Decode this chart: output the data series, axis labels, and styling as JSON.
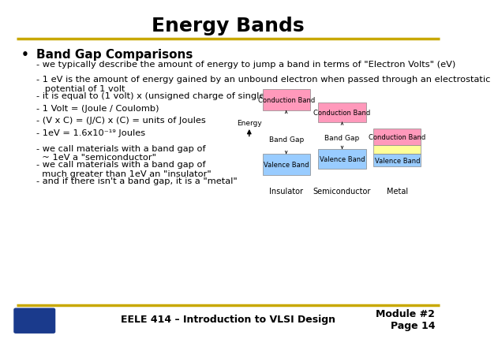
{
  "title": "Energy Bands",
  "title_fontsize": 18,
  "title_fontweight": "bold",
  "bg_color": "#ffffff",
  "line_color": "#c8a800",
  "bullet_header": "Band Gap Comparisons",
  "bullet_lines": [
    "- we typically describe the amount of energy to jump a band in terms of \"Electron Volts\" (eV)",
    "- 1 eV is the amount of energy gained by an unbound electron when passed through an electrostatic\n   potential of 1 volt",
    "- it is equal to (1 volt) x (unsigned charge of single electron)",
    "- 1 Volt = (Joule / Coulomb)",
    "- (V x C) = (J/C) x (C) = units of Joules",
    "- 1eV = 1.6x10⁻¹⁹ Joules",
    "- we call materials with a band gap of\n  ~ 1eV a \"semiconductor\"",
    "- we call materials with a band gap of\n  much greater than 1eV an \"insulator\"",
    "- and if there isn't a band gap, it is a \"metal\""
  ],
  "footer_text": "EELE 414 – Introduction to VLSI Design",
  "footer_module": "Module #2\nPage 14",
  "pink_color": "#ff99bb",
  "blue_color": "#99ccff",
  "yellow_color": "#ffff99"
}
